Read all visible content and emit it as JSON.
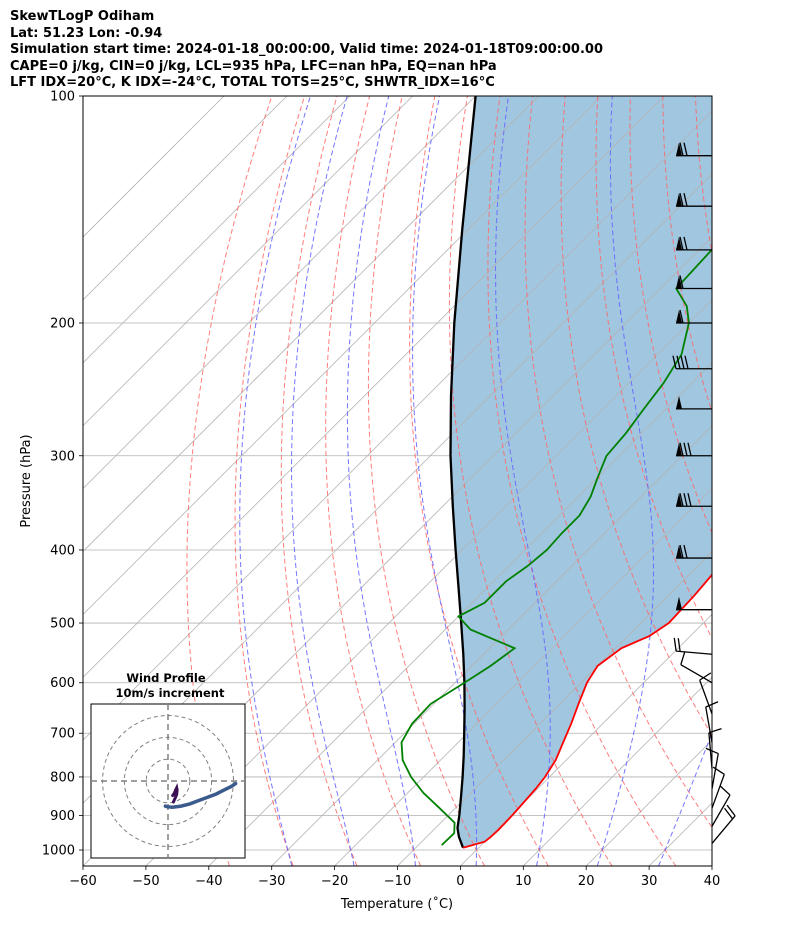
{
  "header": {
    "line1": "SkewTLogP Odiham",
    "line2": "Lat: 51.23   Lon: -0.94",
    "line3": "Simulation start time: 2024-01-18_00:00:00, Valid time: 2024-01-18T09:00:00.00",
    "line4": "CAPE=0 j/kg, CIN=0 j/kg, LCL=935 hPa, LFC=nan hPa, EQ=nan hPa",
    "line5": "LFT IDX=20°C, K IDX=-24°C, TOTAL TOTS=25°C, SHWTR_IDX=16°C"
  },
  "colors": {
    "temperature": "#ff0000",
    "dewpoint": "#008000",
    "parcel": "#000000",
    "cape_fill": "#a1c6e0",
    "dry_adiabat": "#ff6666",
    "moist_adiabat": "#6666ff",
    "isotherm": "#b3b3b3",
    "hodograph": "#3b5b8c"
  },
  "chart_data": [
    {
      "type": "line",
      "title": "SkewTLogP Odiham",
      "xlabel": "Temperature (˚C)",
      "ylabel": "Pressure (hPa)",
      "xlim": [
        -60,
        40
      ],
      "ylim": [
        1050,
        100
      ],
      "skew": 45,
      "xticks": [
        -60,
        -50,
        -40,
        -30,
        -20,
        -10,
        0,
        10,
        20,
        30,
        40
      ],
      "xtick_labels": [
        "−60",
        "−50",
        "−40",
        "−30",
        "−20",
        "−10",
        "0",
        "10",
        "20",
        "30",
        "40"
      ],
      "yticks": [
        1000,
        900,
        800,
        700,
        600,
        500,
        400,
        300,
        200,
        100
      ],
      "ytick_labels": [
        "1000",
        "900",
        "800",
        "700",
        "600",
        "500",
        "400",
        "300",
        "200",
        "100"
      ],
      "grid": true,
      "series": [
        {
          "name": "Temperature",
          "p": [
            993,
            975,
            960,
            940,
            900,
            870,
            830,
            800,
            760,
            720,
            680,
            640,
            600,
            570,
            540,
            520,
            500,
            460,
            420,
            390,
            360,
            330,
            300,
            280,
            265,
            250,
            235,
            220,
            200,
            180,
            160,
            140,
            120,
            100
          ],
          "t": [
            -2.5,
            0.0,
            0.2,
            0.3,
            0.2,
            0.0,
            -0.3,
            -0.7,
            -1.7,
            -3.3,
            -5.0,
            -7.0,
            -9.0,
            -10.0,
            -9.0,
            -6.5,
            -5.5,
            -5.8,
            -6.5,
            -8.0,
            -9.5,
            -11.0,
            -13.0,
            -14.5,
            -15.5,
            -16.5,
            -16.6,
            -16.0,
            -15.0,
            -15.0,
            -14.7,
            -14.9,
            -15.5,
            -15.8
          ]
        },
        {
          "name": "Dewpoint",
          "p": [
            985,
            950,
            920,
            880,
            840,
            800,
            760,
            720,
            680,
            640,
            600,
            570,
            540,
            510,
            490,
            470,
            440,
            420,
            400,
            380,
            360,
            340,
            320,
            300,
            280,
            260,
            240,
            220,
            200,
            190,
            180,
            160,
            140,
            120,
            100
          ],
          "t": [
            -6.3,
            -6.2,
            -7.8,
            -12.5,
            -17.5,
            -22.0,
            -26.0,
            -29.0,
            -30.3,
            -30.5,
            -28.5,
            -27.0,
            -26.0,
            -36.0,
            -40.0,
            -38.0,
            -38.0,
            -37.0,
            -36.5,
            -36.8,
            -36.8,
            -38.0,
            -40.0,
            -42.0,
            -42.5,
            -43.5,
            -44.5,
            -46.2,
            -50.0,
            -53.0,
            -57.5,
            -58.0,
            -58.6,
            -59.7,
            -61.0
          ]
        },
        {
          "name": "Parcel",
          "p": [
            993,
            960,
            935,
            900,
            850,
            800,
            750,
            700,
            650,
            600,
            550,
            500,
            450,
            400,
            350,
            300,
            250,
            200,
            150,
            100
          ],
          "t": [
            -2.5,
            -4.9,
            -6.5,
            -8.2,
            -10.9,
            -13.8,
            -17.0,
            -20.5,
            -24.3,
            -28.5,
            -33.2,
            -38.5,
            -44.4,
            -51.0,
            -58.4,
            -66.8,
            -76.2,
            -87.3,
            -101.0,
            -120.0
          ]
        }
      ],
      "fill": {
        "name": "CAPE/CIN shading",
        "between": [
          "Temperature",
          "Parcel"
        ]
      },
      "reference_lines": {
        "isotherms_step": 10,
        "dry_adiabats_theta": [
          233.15,
          243.15,
          253.15,
          263.15,
          273.15,
          283.15,
          293.15,
          303.15,
          313.15,
          323.15,
          333.15,
          343.15,
          353.15,
          363.15,
          373.15,
          383.15,
          393.15,
          403.15,
          413.15,
          423.15
        ],
        "moist_adiabats_start_t": [
          -30,
          -20,
          -10,
          0,
          10,
          20,
          30,
          40,
          50,
          60
        ]
      },
      "wind_barbs": [
        {
          "p": 120,
          "speed_kt": 70,
          "dir_deg": 270
        },
        {
          "p": 140,
          "speed_kt": 70,
          "dir_deg": 270
        },
        {
          "p": 160,
          "speed_kt": 70,
          "dir_deg": 270
        },
        {
          "p": 180,
          "speed_kt": 60,
          "dir_deg": 270
        },
        {
          "p": 200,
          "speed_kt": 60,
          "dir_deg": 270
        },
        {
          "p": 230,
          "speed_kt": 40,
          "dir_deg": 270
        },
        {
          "p": 260,
          "speed_kt": 50,
          "dir_deg": 270
        },
        {
          "p": 300,
          "speed_kt": 80,
          "dir_deg": 270
        },
        {
          "p": 350,
          "speed_kt": 80,
          "dir_deg": 270
        },
        {
          "p": 410,
          "speed_kt": 70,
          "dir_deg": 270
        },
        {
          "p": 480,
          "speed_kt": 50,
          "dir_deg": 270
        },
        {
          "p": 550,
          "speed_kt": 20,
          "dir_deg": 275
        },
        {
          "p": 600,
          "speed_kt": 10,
          "dir_deg": 300
        },
        {
          "p": 660,
          "speed_kt": 10,
          "dir_deg": 340
        },
        {
          "p": 720,
          "speed_kt": 10,
          "dir_deg": 350
        },
        {
          "p": 780,
          "speed_kt": 10,
          "dir_deg": 355
        },
        {
          "p": 830,
          "speed_kt": 10,
          "dir_deg": 10
        },
        {
          "p": 880,
          "speed_kt": 10,
          "dir_deg": 20
        },
        {
          "p": 930,
          "speed_kt": 10,
          "dir_deg": 30
        },
        {
          "p": 980,
          "speed_kt": 20,
          "dir_deg": 40
        }
      ]
    },
    {
      "type": "line",
      "title": "Wind Profile",
      "subtitle": "10m/s increment",
      "rings_ms": [
        10,
        20,
        30
      ],
      "xlim": [
        -30,
        30
      ],
      "ylim": [
        -30,
        30
      ],
      "hodograph_u": [
        -1.2,
        -0.5,
        2.0,
        6.0,
        10.0,
        14.0,
        18.0,
        22.0,
        26.0,
        29.0,
        31.0
      ],
      "hodograph_v": [
        -11.5,
        -11.8,
        -12.0,
        -11.5,
        -10.5,
        -9.0,
        -7.5,
        -6.0,
        -4.0,
        -2.5,
        -1.2
      ],
      "low_level_u": [
        -1.5,
        -0.8,
        -0.2,
        0.3,
        0.5,
        0.3,
        -0.5,
        -1.2
      ],
      "low_level_v": [
        -8.0,
        -7.0,
        -5.5,
        -4.5,
        -5.5,
        -7.5,
        -9.5,
        -11.0
      ]
    }
  ]
}
